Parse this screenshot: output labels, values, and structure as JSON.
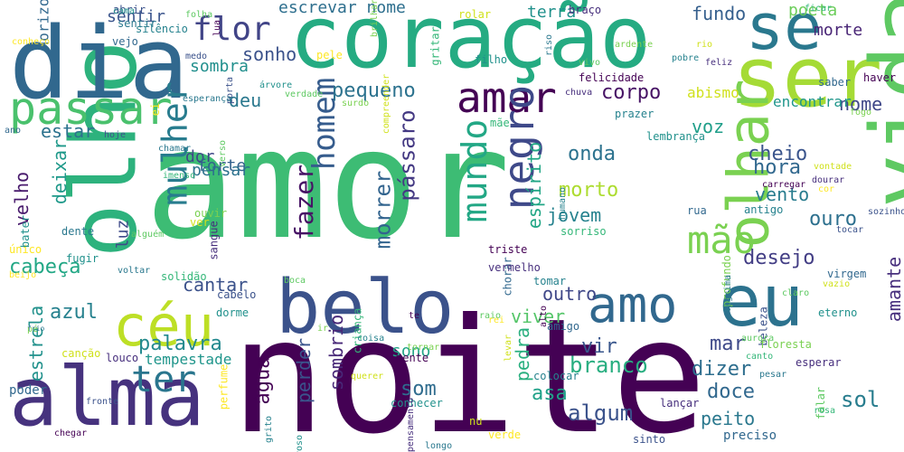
{
  "words": [
    {
      "t": "amor",
      "c": "#3dbc74"
    },
    {
      "t": "noite",
      "c": "#440154"
    },
    {
      "t": "olho",
      "c": "#2db27d",
      "r": 1
    },
    {
      "t": "dia",
      "c": "#31688e"
    },
    {
      "t": "coração",
      "c": "#25ab82"
    },
    {
      "t": "ser",
      "c": "#a5db36"
    },
    {
      "t": "vida",
      "c": "#5ec962",
      "r": 1
    },
    {
      "t": "alma",
      "c": "#46327e"
    },
    {
      "t": "belo",
      "c": "#3b528b"
    },
    {
      "t": "eu",
      "c": "#2c728e"
    },
    {
      "t": "olhar",
      "c": "#7ad151",
      "r": 1
    },
    {
      "t": "céu",
      "c": "#bddf26"
    },
    {
      "t": "passar",
      "c": "#4ac16d"
    },
    {
      "t": "se",
      "c": "#2a788e"
    },
    {
      "t": "amar",
      "c": "#440154"
    },
    {
      "t": "negro",
      "c": "#3e4989",
      "r": 1
    },
    {
      "t": "amo",
      "c": "#31688e"
    },
    {
      "t": "mão",
      "c": "#7ad151"
    },
    {
      "t": "mulher",
      "c": "#287c8e",
      "r": 1
    },
    {
      "t": "homem",
      "c": "#365c8d",
      "r": 1
    },
    {
      "t": "mundo",
      "c": "#22a785",
      "r": 1
    },
    {
      "t": "flor",
      "c": "#414487"
    },
    {
      "t": "ter",
      "c": "#2a768e"
    },
    {
      "t": "fazer",
      "c": "#471365",
      "r": 1
    },
    {
      "t": "pássaro",
      "c": "#443983",
      "r": 1
    },
    {
      "t": "morrer",
      "c": "#32648e",
      "r": 1
    },
    {
      "t": "pequeno",
      "c": "#2c728e"
    },
    {
      "t": "sonho",
      "c": "#3b528b"
    },
    {
      "t": "sombra",
      "c": "#218f8d"
    },
    {
      "t": "escrevar nome",
      "c": "#2e6f8e"
    },
    {
      "t": "sentir",
      "c": "#3a548c"
    },
    {
      "t": "terra",
      "c": "#21918c"
    },
    {
      "t": "fundo",
      "c": "#355f8d"
    },
    {
      "t": "poeta",
      "c": "#6ccd5a"
    },
    {
      "t": "morte",
      "c": "#482475"
    },
    {
      "t": "estar",
      "c": "#2c728e"
    },
    {
      "t": "velho",
      "c": "#481a6c",
      "r": 1
    },
    {
      "t": "deixar",
      "c": "#1f998a",
      "r": 1
    },
    {
      "t": "cabeça",
      "c": "#22a785"
    },
    {
      "t": "azul",
      "c": "#26818e"
    },
    {
      "t": "estrela",
      "c": "#21918c",
      "r": 1
    },
    {
      "t": "palavra",
      "c": "#23898e"
    },
    {
      "t": "cantar",
      "c": "#3b528b"
    },
    {
      "t": "vir",
      "c": "#39568c"
    },
    {
      "t": "viver",
      "c": "#54c568"
    },
    {
      "t": "outro",
      "c": "#3f4788"
    },
    {
      "t": "corpo",
      "c": "#471365"
    },
    {
      "t": "deu",
      "c": "#2a788e"
    },
    {
      "t": "voz",
      "c": "#1f9e89"
    },
    {
      "t": "nome",
      "c": "#3f4788"
    },
    {
      "t": "onda",
      "c": "#2c728e"
    },
    {
      "t": "cheio",
      "c": "#3a548c"
    },
    {
      "t": "hora",
      "c": "#31688e"
    },
    {
      "t": "dor",
      "c": "#3f4788"
    },
    {
      "t": "morto",
      "c": "#addc30"
    },
    {
      "t": "jovem",
      "c": "#26828e"
    },
    {
      "t": "vento",
      "c": "#287c8e"
    },
    {
      "t": "ouro",
      "c": "#2d708e"
    },
    {
      "t": "desejo",
      "c": "#433e85"
    },
    {
      "t": "branco",
      "c": "#28ae80"
    },
    {
      "t": "algum",
      "c": "#3b528b"
    },
    {
      "t": "asa",
      "c": "#1fa188"
    },
    {
      "t": "som",
      "c": "#2f6c8e"
    },
    {
      "t": "sono",
      "c": "#20a486"
    },
    {
      "t": "pedra",
      "c": "#29af7f",
      "r": 1
    },
    {
      "t": "perder",
      "c": "#3a548c",
      "r": 1
    },
    {
      "t": "água",
      "c": "#440154",
      "r": 1
    },
    {
      "t": "sombrio",
      "c": "#482878",
      "r": 1
    },
    {
      "t": "dizer",
      "c": "#2e6e8e"
    },
    {
      "t": "doce",
      "c": "#31688e"
    },
    {
      "t": "peito",
      "c": "#2a788e"
    },
    {
      "t": "mar",
      "c": "#3e4989"
    },
    {
      "t": "sol",
      "c": "#287d8e"
    },
    {
      "t": "amante",
      "c": "#472f7d",
      "r": 1
    },
    {
      "t": "espírito",
      "c": "#21a685",
      "r": 1
    },
    {
      "t": "forte",
      "c": "#34618d"
    },
    {
      "t": "pensar",
      "c": "#2c728e"
    },
    {
      "t": "luz",
      "c": "#3e4a89",
      "r": 1
    },
    {
      "t": "abismo",
      "c": "#d0e11c"
    },
    {
      "t": "encontrar",
      "c": "#1f968b"
    },
    {
      "t": "tempestade",
      "c": "#1f958b"
    }
  ],
  "small_words": [
    "horizonte",
    "abrir",
    "cama",
    "sentir",
    "folha",
    "brilhar",
    "rolar",
    "braço",
    "ficar",
    "silêncio",
    "lua",
    "conheço",
    "vejo",
    "medo",
    "filho",
    "riso",
    "vivo",
    "ardente",
    "rio",
    "feliz",
    "gritar",
    "pobre",
    "felicidade",
    "pele",
    "saber",
    "porta",
    "árvore",
    "esperança",
    "verdade",
    "surdo",
    "compreender",
    "chuva",
    "mãe",
    "prazer",
    "haver",
    "ei",
    "ano",
    "hoje",
    "lembrança",
    "chamar",
    "verso",
    "fogo",
    "vontade",
    "dourar",
    "imenso",
    "humano",
    "carregar",
    "cor",
    "rua",
    "sozinho",
    "bater",
    "dente",
    "alguém",
    "ouvir",
    "ver",
    "sangue",
    "sorriso",
    "antigo",
    "triste",
    "único",
    "chorar",
    "tocar",
    "fugir",
    "voltar",
    "raio",
    "profundo",
    "vazio",
    "vermelho",
    "solidão",
    "tomar",
    "alto",
    "beijo",
    "virgem",
    "cabelo",
    "dorme",
    "lágrima",
    "claro",
    "pé",
    "canção",
    "louco",
    "criança",
    "coisa",
    "te",
    "rei",
    "amigo",
    "beleza",
    "eterno",
    "frio",
    "aurora",
    "tornar",
    "levar",
    "esperar",
    "canto",
    "colocar",
    "mente",
    "perfume",
    "poder",
    "fronte",
    "conhecer",
    "pesar",
    "falar",
    "floresta",
    "nu",
    "lançar",
    "rosa",
    "grito",
    "chegar",
    "verde",
    "preciso",
    "sinto",
    "roso",
    "longo",
    "boca",
    "ir",
    "querer",
    "pensamento"
  ]
}
